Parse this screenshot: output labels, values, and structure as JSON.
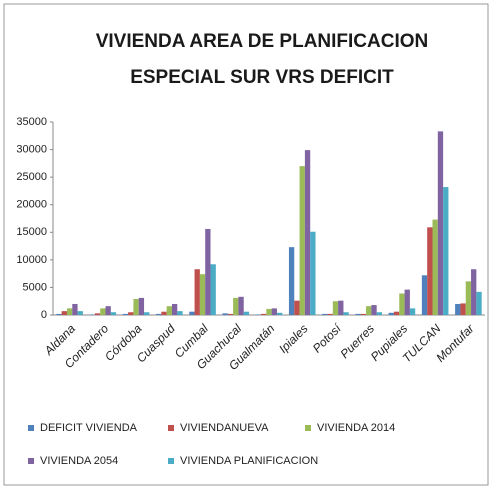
{
  "chart_data": {
    "type": "bar",
    "title": [
      "VIVIENDA AREA DE PLANIFICACION",
      "ESPECIAL SUR VRS DEFICIT"
    ],
    "categories": [
      "Aldana",
      "Contadero",
      "Córdoba",
      "Cuaspud",
      "Cumbal",
      "Guachucal",
      "Gualmatán",
      "Ipiales",
      "Potosí",
      "Puerres",
      "Pupiales",
      "TULCAN",
      "Montufar"
    ],
    "series": [
      {
        "name": "DEFICIT VIVIENDA",
        "color": "#4f81bd",
        "values": [
          200,
          100,
          200,
          200,
          600,
          300,
          100,
          12300,
          200,
          200,
          400,
          7200,
          2000
        ]
      },
      {
        "name": "VIVIENDANUEVA",
        "color": "#c0504d",
        "values": [
          700,
          300,
          500,
          600,
          8300,
          200,
          200,
          2600,
          200,
          200,
          600,
          15900,
          2100
        ]
      },
      {
        "name": "VIVIENDA 2014",
        "color": "#9bbb59",
        "values": [
          1200,
          1200,
          2900,
          1600,
          7400,
          3100,
          1100,
          27000,
          2500,
          1600,
          3900,
          17300,
          6100
        ]
      },
      {
        "name": "VIVIENDA  2054",
        "color": "#8064a2",
        "values": [
          2000,
          1600,
          3100,
          2000,
          15600,
          3300,
          1200,
          29900,
          2600,
          1800,
          4600,
          33300,
          8300
        ]
      },
      {
        "name": "VIVIENDA PLANIFICACION",
        "color": "#4bacc6",
        "values": [
          700,
          500,
          500,
          700,
          9200,
          600,
          400,
          15100,
          500,
          500,
          1200,
          23200,
          4200
        ]
      }
    ],
    "ylim": [
      0,
      35000
    ],
    "yticks": [
      0,
      5000,
      10000,
      15000,
      20000,
      25000,
      30000,
      35000
    ],
    "grid": false
  }
}
